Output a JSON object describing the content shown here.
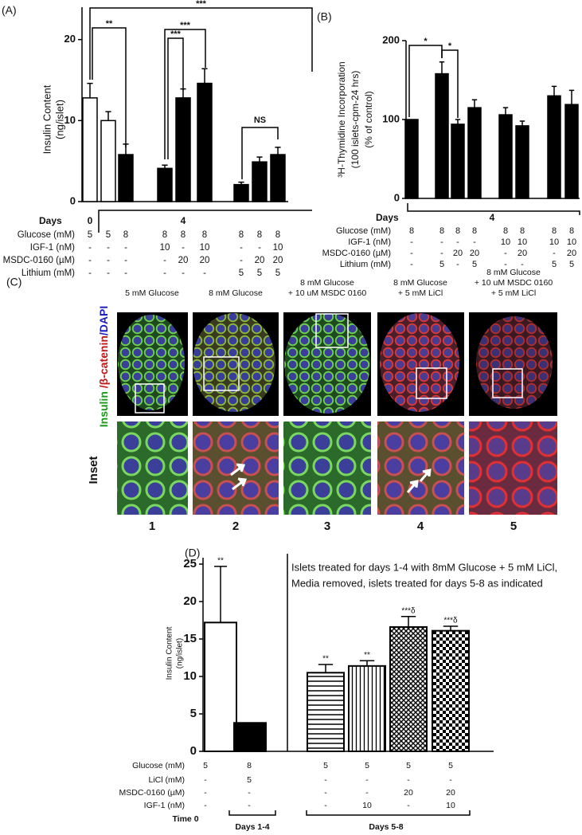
{
  "chart_data": [
    {
      "type": "bar",
      "panel_label": "(A)",
      "ylabel": [
        "Insulin Content",
        "(ng/islet)"
      ],
      "values": [
        12.8,
        10,
        5.8,
        4.1,
        12.8,
        14.6,
        2.1,
        4.9,
        5.8
      ],
      "errors": [
        1.8,
        1.1,
        1.3,
        0.4,
        1.1,
        1.8,
        0.3,
        0.6,
        0.9
      ],
      "colors": [
        "#ffffff",
        "#ffffff",
        "#000000",
        "#000000",
        "#000000",
        "#000000",
        "#000000",
        "#000000",
        "#000000"
      ],
      "ylim": [
        0,
        24
      ],
      "yticks": [
        0,
        10,
        20
      ],
      "significance": [
        "***",
        "**",
        "***",
        "***",
        "NS"
      ],
      "days": {
        "label": "Days",
        "values": [
          "0",
          "4"
        ]
      },
      "conditions": [
        {
          "label": "Glucose (mM)",
          "values": [
            "5",
            "5",
            "8",
            "8",
            "8",
            "8",
            "8",
            "8",
            "8"
          ]
        },
        {
          "label": "IGF-1 (nM)",
          "values": [
            "-",
            "-",
            "-",
            "10",
            "-",
            "10",
            "-",
            "-",
            "10"
          ]
        },
        {
          "label": "MSDC-0160 (µM)",
          "values": [
            "-",
            "-",
            "-",
            "-",
            "20",
            "20",
            "-",
            "20",
            "20"
          ]
        },
        {
          "label": "Lithium (mM)",
          "values": [
            "-",
            "-",
            "-",
            "-",
            "-",
            "-",
            "5",
            "5",
            "5"
          ]
        }
      ]
    },
    {
      "type": "bar",
      "panel_label": "(B)",
      "ylabel": [
        "³H-Thymidine Incorporation",
        "(100 islets-cpm-24 hrs)",
        "(% of control)"
      ],
      "values": [
        100,
        158,
        94,
        115,
        106,
        92,
        130,
        119
      ],
      "errors": [
        null,
        15,
        6,
        10,
        9,
        6,
        12,
        18
      ],
      "colors": [
        "#000000",
        "#000000",
        "#000000",
        "#000000",
        "#000000",
        "#000000",
        "#000000",
        "#000000"
      ],
      "ylim": [
        0,
        200
      ],
      "yticks": [
        0,
        100,
        200
      ],
      "significance": [
        "*",
        "*"
      ],
      "days": {
        "label": "Days",
        "values": [
          "4"
        ]
      },
      "conditions": [
        {
          "label": "Glucose (mM)",
          "values": [
            "8",
            "8",
            "8",
            "8",
            "8",
            "8",
            "8",
            "8"
          ]
        },
        {
          "label": "IGF-1 (nM)",
          "values": [
            "-",
            "-",
            "-",
            "-",
            "10",
            "10",
            "10",
            "10"
          ]
        },
        {
          "label": "MSDC-0160 (µM)",
          "values": [
            "-",
            "-",
            "20",
            "20",
            "-",
            "20",
            "-",
            "20"
          ]
        },
        {
          "label": "Lithium (mM)",
          "values": [
            "-",
            "5",
            "-",
            "5",
            "-",
            "-",
            "5",
            "5"
          ]
        }
      ]
    },
    {
      "type": "bar",
      "panel_label": "(D)",
      "ylabel": [
        "Insulin Content",
        "(ng/islet)"
      ],
      "values": [
        17.2,
        3.8,
        10.5,
        11.4,
        16.6,
        16.1
      ],
      "errors": [
        7.5,
        null,
        1.1,
        0.7,
        1.4,
        0.6
      ],
      "colors": [
        "#ffffff",
        "#000000",
        "hstripe",
        "vstripe",
        "crosshatch",
        "checker"
      ],
      "ylim": [
        0,
        25
      ],
      "yticks": [
        0,
        5,
        10,
        15,
        20,
        25
      ],
      "annotations": [
        "**",
        null,
        "**",
        "**",
        "***δ",
        "***δ"
      ],
      "note": [
        "Islets treated for days 1-4 with 8mM Glucose + 5 mM LiCl,",
        "Media removed, islets treated for days 5-8 as indicated"
      ],
      "conditions": [
        {
          "label": "Glucose (mM)",
          "values": [
            "5",
            "8",
            "5",
            "5",
            "5",
            "5"
          ]
        },
        {
          "label": "LiCl (mM)",
          "values": [
            "-",
            "5",
            "-",
            "-",
            "-",
            "-"
          ]
        },
        {
          "label": "MSDC-0160 (µM)",
          "values": [
            "-",
            "-",
            "-",
            "-",
            "20",
            "20"
          ]
        },
        {
          "label": "IGF-1 (nM)",
          "values": [
            "-",
            "-",
            "-",
            "10",
            "-",
            "10"
          ]
        }
      ],
      "groups": [
        "Time 0",
        "Days 1-4",
        "Days 5-8"
      ]
    }
  ],
  "image_panel": {
    "label": "(C)",
    "stain_label": [
      "Insulin",
      " /β-catenin",
      "/DAPI"
    ],
    "inset_label": "Inset",
    "columns": [
      {
        "title": [
          "5 mM Glucose"
        ],
        "number": "1"
      },
      {
        "title": [
          "8 mM Glucose"
        ],
        "number": "2"
      },
      {
        "title": [
          "8 mM Glucose",
          "+ 10 uM MSDC 0160"
        ],
        "number": "3"
      },
      {
        "title": [
          "8 mM Glucose",
          "+ 5 mM LiCl"
        ],
        "number": "4"
      },
      {
        "title": [
          "8 mM Glucose",
          "+ 10 uM MSDC 0160",
          "+ 5 mM LiCl"
        ],
        "number": "5"
      }
    ]
  }
}
